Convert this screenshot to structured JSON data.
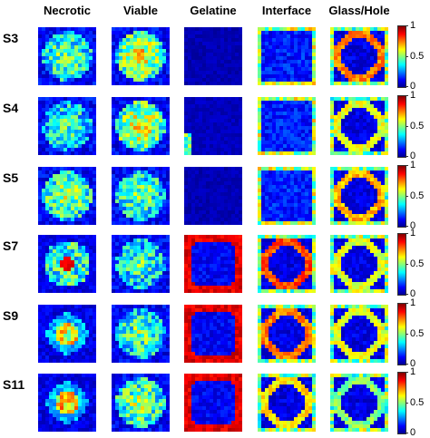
{
  "columns": [
    "Necrotic",
    "Viable",
    "Gelatine",
    "Interface",
    "Glass/Hole"
  ],
  "rows": [
    "S3",
    "S4",
    "S5",
    "S7",
    "S9",
    "S11"
  ],
  "colorbar": {
    "ticks": [
      "1",
      "0.5",
      "0"
    ],
    "colormap": "jet",
    "range": [
      0,
      1
    ]
  },
  "panels": [
    [
      {
        "pattern": "core",
        "level": 0.55
      },
      {
        "pattern": "core",
        "level": 0.7
      },
      {
        "pattern": "empty",
        "level": 0.05
      },
      {
        "pattern": "frame",
        "level": 0.35
      },
      {
        "pattern": "ring",
        "level": 0.75
      }
    ],
    [
      {
        "pattern": "core",
        "level": 0.5
      },
      {
        "pattern": "core",
        "level": 0.7
      },
      {
        "pattern": "left",
        "level": 0.25
      },
      {
        "pattern": "frame",
        "level": 0.4
      },
      {
        "pattern": "ring",
        "level": 0.6
      }
    ],
    [
      {
        "pattern": "core",
        "level": 0.6
      },
      {
        "pattern": "core",
        "level": 0.55
      },
      {
        "pattern": "empty",
        "level": 0.05
      },
      {
        "pattern": "frame",
        "level": 0.4
      },
      {
        "pattern": "ring",
        "level": 0.7
      }
    ],
    [
      {
        "pattern": "hot",
        "level": 0.5
      },
      {
        "pattern": "core",
        "level": 0.5
      },
      {
        "pattern": "border",
        "level": 0.9
      },
      {
        "pattern": "ring",
        "level": 0.8
      },
      {
        "pattern": "ring",
        "level": 0.6
      }
    ],
    [
      {
        "pattern": "small",
        "level": 0.4
      },
      {
        "pattern": "core",
        "level": 0.55
      },
      {
        "pattern": "border",
        "level": 0.9
      },
      {
        "pattern": "ring",
        "level": 0.75
      },
      {
        "pattern": "ring",
        "level": 0.6
      }
    ],
    [
      {
        "pattern": "small",
        "level": 0.45
      },
      {
        "pattern": "core",
        "level": 0.6
      },
      {
        "pattern": "border",
        "level": 0.9
      },
      {
        "pattern": "ring",
        "level": 0.65
      },
      {
        "pattern": "ring",
        "level": 0.5
      }
    ]
  ]
}
